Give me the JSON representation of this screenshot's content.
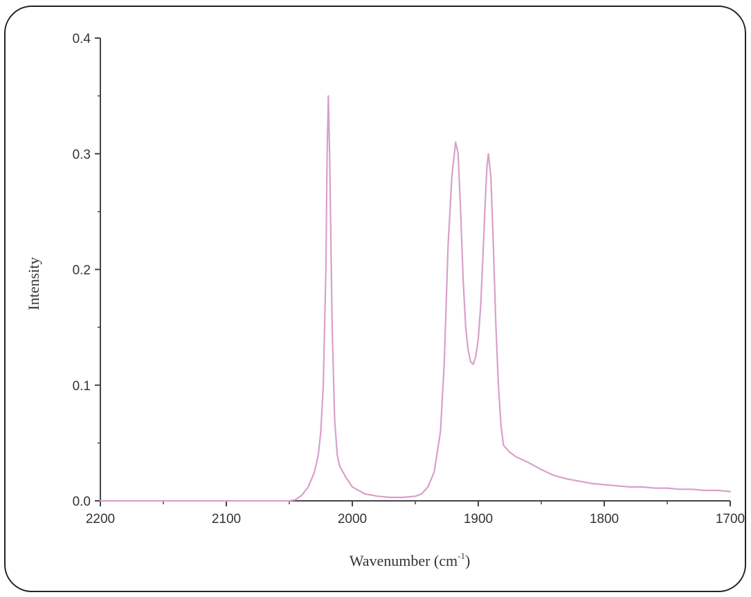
{
  "chart_data": {
    "type": "line",
    "xlabel": "Wavenumber (cm",
    "xlabel_sup": "-1",
    "xlabel_close": ")",
    "ylabel": "Intensity",
    "xlim": [
      2200,
      1700
    ],
    "ylim": [
      0,
      0.4
    ],
    "x_reversed": true,
    "grid": false,
    "legend": "none",
    "xticks": [
      2200,
      2100,
      2000,
      1900,
      1800,
      1700
    ],
    "xtick_labels": [
      "2200",
      "2100",
      "2000",
      "1900",
      "1800",
      "1700"
    ],
    "yticks": [
      0.0,
      0.1,
      0.2,
      0.3,
      0.4
    ],
    "ytick_labels": [
      "0.0",
      "0.1",
      "0.2",
      "0.3",
      "0.4"
    ],
    "series": [
      {
        "color": "#d9a0c8",
        "x": [
          2200,
          2150,
          2100,
          2060,
          2050,
          2045,
          2040,
          2035,
          2030,
          2027,
          2025,
          2023,
          2021,
          2020,
          2019,
          2018,
          2016,
          2014,
          2012,
          2010,
          2005,
          2000,
          1990,
          1980,
          1970,
          1960,
          1950,
          1945,
          1940,
          1935,
          1930,
          1927,
          1924,
          1921,
          1919,
          1918,
          1916,
          1914,
          1912,
          1910,
          1908,
          1906,
          1904,
          1902,
          1900,
          1898,
          1896,
          1894,
          1893,
          1892,
          1890,
          1888,
          1886,
          1884,
          1882,
          1880,
          1875,
          1870,
          1860,
          1850,
          1840,
          1830,
          1820,
          1810,
          1800,
          1790,
          1780,
          1770,
          1760,
          1750,
          1740,
          1730,
          1720,
          1710,
          1700
        ],
        "y": [
          0.0,
          0.0,
          0.0,
          0.0,
          0.0,
          0.001,
          0.005,
          0.012,
          0.025,
          0.04,
          0.06,
          0.1,
          0.2,
          0.3,
          0.35,
          0.3,
          0.15,
          0.07,
          0.04,
          0.03,
          0.02,
          0.012,
          0.006,
          0.004,
          0.003,
          0.003,
          0.004,
          0.006,
          0.012,
          0.025,
          0.06,
          0.12,
          0.22,
          0.28,
          0.3,
          0.31,
          0.3,
          0.25,
          0.19,
          0.15,
          0.13,
          0.12,
          0.118,
          0.125,
          0.14,
          0.17,
          0.22,
          0.27,
          0.29,
          0.3,
          0.28,
          0.22,
          0.15,
          0.1,
          0.065,
          0.048,
          0.042,
          0.038,
          0.033,
          0.027,
          0.022,
          0.019,
          0.017,
          0.015,
          0.014,
          0.013,
          0.012,
          0.012,
          0.011,
          0.011,
          0.01,
          0.01,
          0.009,
          0.009,
          0.008
        ]
      }
    ]
  }
}
